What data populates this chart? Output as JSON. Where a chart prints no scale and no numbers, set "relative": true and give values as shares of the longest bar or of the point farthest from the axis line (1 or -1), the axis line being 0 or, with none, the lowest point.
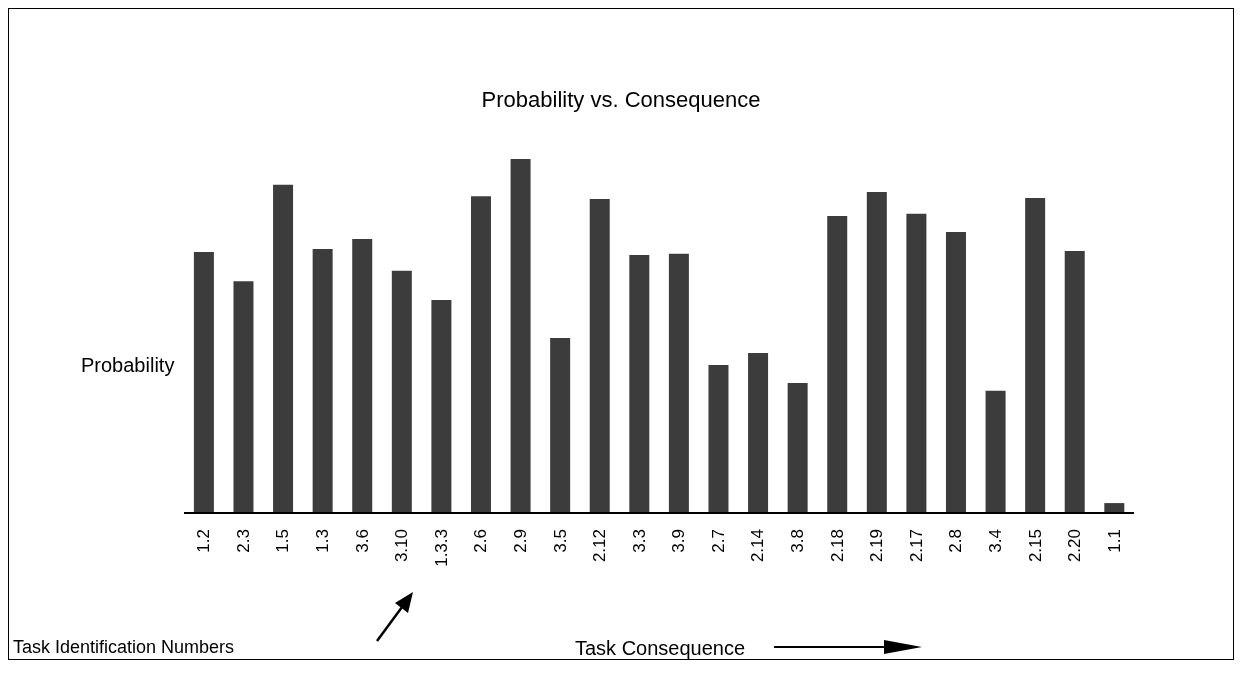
{
  "chart_data": {
    "type": "bar",
    "title": "Probability vs. Consequence",
    "ylabel": "Probability",
    "relative": true,
    "grid": false,
    "legend": false,
    "tick_labels": "x",
    "color": "#3c3c3c",
    "categories": [
      "1.2",
      "2.3",
      "1.5",
      "1.3",
      "3.6",
      "3.10",
      "1.3.3",
      "2.6",
      "2.9",
      "3.5",
      "2.12",
      "3.3",
      "3.9",
      "2.7",
      "2.14",
      "3.8",
      "2.18",
      "2.19",
      "2.17",
      "2.8",
      "3.4",
      "2.15",
      "2.20",
      "1.1"
    ],
    "values": [
      0.737,
      0.655,
      0.927,
      0.746,
      0.774,
      0.684,
      0.602,
      0.895,
      1,
      0.494,
      0.887,
      0.729,
      0.732,
      0.418,
      0.452,
      0.367,
      0.839,
      0.907,
      0.845,
      0.794,
      0.345,
      0.89,
      0.74,
      0.028
    ],
    "annotations": [
      "Task Consequence",
      "Task Identification Numbers"
    ]
  }
}
